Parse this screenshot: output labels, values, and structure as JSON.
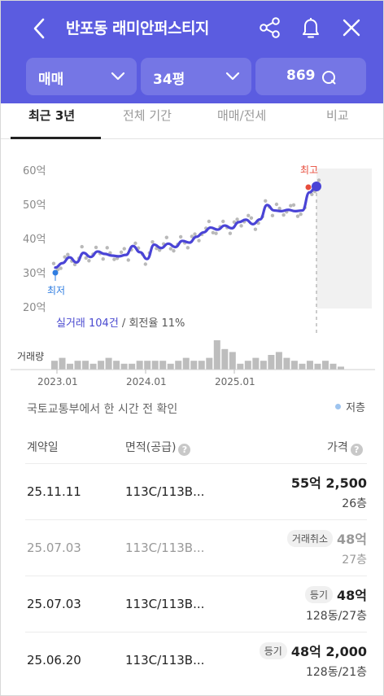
{
  "header": {
    "title": "반포동 래미안퍼스티지",
    "back_icon": "chevron-left-icon",
    "share_icon": "share-icon",
    "bell_icon": "bell-icon",
    "close_icon": "close-icon",
    "background_color": "#5b5ce0"
  },
  "filters": {
    "deal_type": "매매",
    "size": "34평",
    "qna_count": "869"
  },
  "tabs": [
    {
      "label": "최근 3년",
      "active": true
    },
    {
      "label": "전체 기간",
      "active": false
    },
    {
      "label": "매매/전세",
      "active": false
    },
    {
      "label": "비교",
      "active": false
    }
  ],
  "chart": {
    "max_label": "최고",
    "min_label": "최저",
    "stat_link": "실거래 104건",
    "stat_rest": " / 회전율 11%",
    "volume_label": "거래량",
    "line_color": "#4a44d6",
    "accent_max_color": "#e74c3c",
    "accent_min_color": "#2f7de1"
  },
  "chart_data": {
    "type": "line",
    "y_unit": "억",
    "yticks": [
      "60억",
      "50억",
      "40억",
      "30억",
      "20억"
    ],
    "ylim": [
      20,
      60
    ],
    "xticks": [
      "2023.01",
      "2024.01",
      "2025.01"
    ],
    "series": [
      {
        "values": [
          31.5,
          32.8,
          34.5,
          33.0,
          35.8,
          34.6,
          36.2,
          35.5,
          35.0,
          34.8,
          35.2,
          37.8,
          36.0,
          34.0,
          38.2,
          37.2,
          38.5,
          37.5,
          39.3,
          38.8,
          40.5,
          41.8,
          43.2,
          42.6,
          43.8,
          43.0,
          44.8,
          45.5,
          44.2,
          45.6,
          49.8,
          48.2,
          48.0,
          48.4,
          48.0,
          48.2,
          53.5,
          55.25
        ]
      }
    ],
    "max_value": 55.25,
    "min_value": 30.0,
    "volume": [
      3,
      4,
      2,
      3,
      3,
      2,
      3,
      4,
      3,
      2,
      2,
      3,
      3,
      3,
      3,
      2,
      3,
      4,
      3,
      3,
      4,
      10,
      7,
      6,
      2,
      3,
      4,
      3,
      5,
      6,
      4,
      3,
      2,
      3,
      2,
      3,
      2,
      1
    ]
  },
  "info": {
    "confirm_text": "국토교통부에서 한 시간 전 확인",
    "legend_low": "저층"
  },
  "table": {
    "headers": {
      "date": "계약일",
      "area": "면적(공급)",
      "price": "가격"
    },
    "rows": [
      {
        "date": "25.11.11",
        "area": "113C/113B...",
        "badge": "",
        "price": "55억 2,500",
        "sub": "26층",
        "cancelled": false
      },
      {
        "date": "25.07.03",
        "area": "113C/113B...",
        "badge": "거래취소",
        "price": "48억",
        "sub": "27층",
        "cancelled": true
      },
      {
        "date": "25.07.03",
        "area": "113C/113B...",
        "badge": "등기",
        "price": "48억",
        "sub": "128동/27층",
        "cancelled": false
      },
      {
        "date": "25.06.20",
        "area": "113C/113B...",
        "badge": "등기",
        "price": "48억 2,000",
        "sub": "128동/21층",
        "cancelled": false
      }
    ]
  }
}
